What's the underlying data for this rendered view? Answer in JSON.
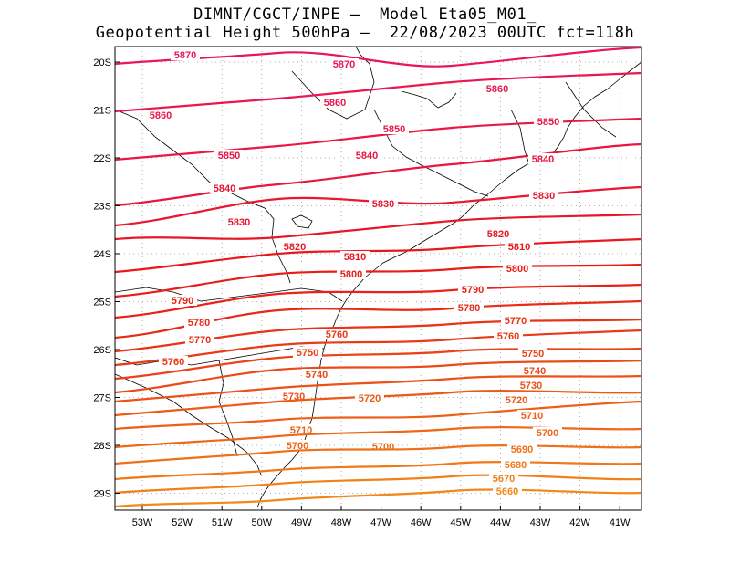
{
  "title": {
    "line1": "DIMNT/CGCT/INPE –  Model Eta05_M01_",
    "line2": "Geopotential Height 500hPa –  22/08/2023 00UTC fct=118h"
  },
  "map": {
    "lat_labels": [
      "20S",
      "21S",
      "22S",
      "23S",
      "24S",
      "25S",
      "26S",
      "27S",
      "28S",
      "29S"
    ],
    "lon_labels": [
      "53W",
      "52W",
      "51W",
      "50W",
      "49W",
      "48W",
      "47W",
      "46W",
      "45W",
      "44W",
      "43W",
      "42W",
      "41W"
    ],
    "contours": [
      {
        "value": "5870",
        "color": "#e8175d"
      },
      {
        "value": "5860",
        "color": "#e81752"
      },
      {
        "value": "5850",
        "color": "#e81747"
      },
      {
        "value": "5840",
        "color": "#e8173d"
      },
      {
        "value": "5830",
        "color": "#e81732"
      },
      {
        "value": "5820",
        "color": "#e81727"
      },
      {
        "value": "5810",
        "color": "#e8171d"
      },
      {
        "value": "5800",
        "color": "#e81d17"
      },
      {
        "value": "5790",
        "color": "#e82217"
      },
      {
        "value": "5780",
        "color": "#e82a17"
      },
      {
        "value": "5770",
        "color": "#e83317"
      },
      {
        "value": "5760",
        "color": "#e83a17"
      },
      {
        "value": "5750",
        "color": "#ea4318"
      },
      {
        "value": "5740",
        "color": "#ea4a18"
      },
      {
        "value": "5730",
        "color": "#eb5218"
      },
      {
        "value": "5720",
        "color": "#ec5a18"
      },
      {
        "value": "5710",
        "color": "#ed6018"
      },
      {
        "value": "5700",
        "color": "#ee6818"
      },
      {
        "value": "5690",
        "color": "#ef7018"
      },
      {
        "value": "5680",
        "color": "#f07818"
      },
      {
        "value": "5670",
        "color": "#f18018"
      },
      {
        "value": "5660",
        "color": "#f28818"
      }
    ]
  }
}
